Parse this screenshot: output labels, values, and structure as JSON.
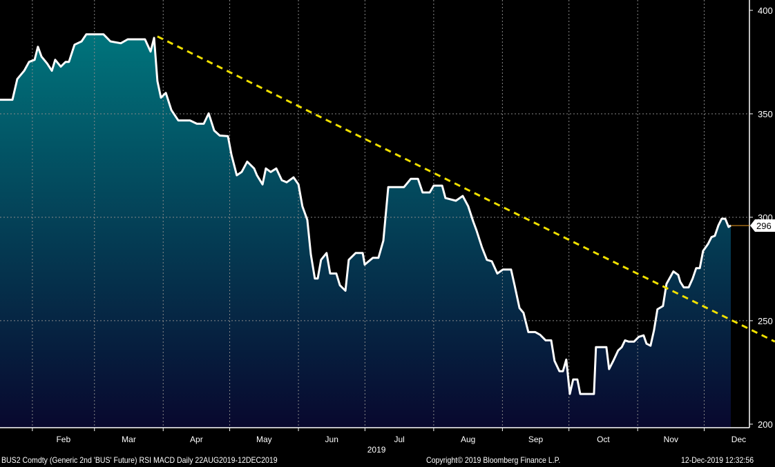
{
  "chart_data": {
    "type": "area",
    "title": "BUS2 Comdty (Generic 2nd 'BUS' Future) RSI MACD",
    "xlabel": "2019",
    "ylabel": "",
    "x_unit": "day of year 2019",
    "ylim": [
      198.3,
      400
    ],
    "xlim": [
      17.4,
      347.0
    ],
    "grid": true,
    "yticks": [
      200,
      250,
      300,
      350,
      400
    ],
    "ytick_labels": [
      "200",
      "250",
      "300",
      "350",
      "400"
    ],
    "month_labels": [
      "Feb",
      "Mar",
      "Apr",
      "May",
      "Jun",
      "Jul",
      "Aug",
      "Sep",
      "Oct",
      "Nov",
      "Dec"
    ],
    "month_starts": [
      32,
      60,
      91,
      121,
      152,
      182,
      213,
      244,
      274,
      305,
      335
    ],
    "year_label": "2019",
    "last_value_label": "296",
    "last_value": 296,
    "colors": {
      "line": "#ffffff",
      "fill_top": "#00747c",
      "fill_bottom": "#08082e",
      "trend": "#f0e000",
      "last_marker": "#f0a020"
    },
    "series": [
      {
        "name": "BUS2 Comdty",
        "points": [
          [
            17.4,
            356.8
          ],
          [
            23.0,
            356.8
          ],
          [
            25.2,
            366.8
          ],
          [
            28.3,
            370.8
          ],
          [
            30.5,
            375.1
          ],
          [
            33.0,
            376.1
          ],
          [
            34.5,
            382.4
          ],
          [
            36.1,
            377.7
          ],
          [
            38.6,
            374.4
          ],
          [
            40.8,
            370.8
          ],
          [
            42.3,
            376.1
          ],
          [
            44.8,
            372.8
          ],
          [
            47.0,
            375.1
          ],
          [
            48.5,
            375.1
          ],
          [
            51.0,
            383.4
          ],
          [
            54.2,
            385.0
          ],
          [
            56.3,
            388.4
          ],
          [
            64.1,
            388.4
          ],
          [
            67.2,
            385.0
          ],
          [
            71.9,
            384.1
          ],
          [
            75.0,
            386.0
          ],
          [
            82.8,
            386.0
          ],
          [
            85.3,
            380.1
          ],
          [
            86.9,
            386.7
          ],
          [
            88.4,
            365.8
          ],
          [
            90.0,
            357.8
          ],
          [
            92.2,
            360.1
          ],
          [
            94.7,
            351.8
          ],
          [
            97.8,
            346.8
          ],
          [
            103.1,
            346.8
          ],
          [
            106.2,
            345.2
          ],
          [
            109.3,
            345.2
          ],
          [
            111.5,
            350.2
          ],
          [
            114.0,
            341.9
          ],
          [
            116.5,
            339.5
          ],
          [
            120.2,
            339.2
          ],
          [
            121.8,
            330.2
          ],
          [
            124.2,
            320.3
          ],
          [
            126.4,
            321.9
          ],
          [
            128.9,
            326.9
          ],
          [
            132.0,
            323.6
          ],
          [
            133.3,
            320.3
          ],
          [
            135.8,
            315.9
          ],
          [
            137.3,
            323.6
          ],
          [
            139.5,
            321.9
          ],
          [
            142.0,
            323.6
          ],
          [
            144.5,
            317.9
          ],
          [
            146.7,
            316.9
          ],
          [
            149.8,
            319.3
          ],
          [
            152.0,
            315.9
          ],
          [
            153.8,
            305.3
          ],
          [
            156.0,
            298.7
          ],
          [
            157.6,
            282.1
          ],
          [
            159.4,
            270.4
          ],
          [
            160.7,
            270.4
          ],
          [
            162.2,
            279.4
          ],
          [
            164.7,
            282.7
          ],
          [
            166.3,
            272.8
          ],
          [
            169.1,
            272.8
          ],
          [
            170.7,
            267.1
          ],
          [
            173.2,
            264.5
          ],
          [
            174.7,
            279.4
          ],
          [
            177.8,
            282.7
          ],
          [
            181.0,
            282.7
          ],
          [
            181.9,
            277.1
          ],
          [
            185.6,
            280.4
          ],
          [
            188.1,
            280.4
          ],
          [
            190.3,
            288.7
          ],
          [
            192.5,
            314.6
          ],
          [
            199.6,
            314.6
          ],
          [
            202.7,
            318.6
          ],
          [
            205.9,
            318.6
          ],
          [
            208.0,
            312.0
          ],
          [
            211.2,
            312.0
          ],
          [
            213.0,
            315.3
          ],
          [
            216.8,
            315.3
          ],
          [
            218.3,
            309.3
          ],
          [
            223.0,
            308.0
          ],
          [
            226.1,
            310.3
          ],
          [
            228.6,
            305.3
          ],
          [
            230.8,
            298.0
          ],
          [
            232.3,
            293.7
          ],
          [
            234.8,
            285.4
          ],
          [
            237.0,
            279.4
          ],
          [
            239.2,
            278.7
          ],
          [
            241.7,
            272.8
          ],
          [
            244.2,
            274.7
          ],
          [
            247.9,
            274.7
          ],
          [
            249.5,
            267.1
          ],
          [
            251.7,
            256.1
          ],
          [
            253.5,
            253.8
          ],
          [
            255.7,
            244.5
          ],
          [
            258.8,
            244.5
          ],
          [
            261.0,
            243.2
          ],
          [
            263.5,
            240.5
          ],
          [
            266.0,
            240.5
          ],
          [
            267.5,
            230.6
          ],
          [
            269.7,
            225.6
          ],
          [
            271.3,
            225.6
          ],
          [
            272.8,
            231.2
          ],
          [
            274.4,
            214.6
          ],
          [
            275.9,
            221.6
          ],
          [
            277.8,
            221.6
          ],
          [
            279.1,
            214.6
          ],
          [
            285.3,
            214.6
          ],
          [
            286.2,
            237.2
          ],
          [
            290.9,
            237.2
          ],
          [
            292.1,
            226.6
          ],
          [
            294.0,
            230.6
          ],
          [
            296.2,
            235.6
          ],
          [
            297.8,
            237.2
          ],
          [
            299.3,
            240.5
          ],
          [
            300.9,
            239.9
          ],
          [
            303.4,
            239.9
          ],
          [
            305.5,
            242.2
          ],
          [
            307.7,
            242.9
          ],
          [
            309.0,
            238.9
          ],
          [
            310.8,
            237.9
          ],
          [
            312.4,
            245.5
          ],
          [
            313.9,
            255.5
          ],
          [
            316.4,
            257.1
          ],
          [
            318.0,
            267.8
          ],
          [
            321.1,
            273.8
          ],
          [
            323.3,
            272.1
          ],
          [
            324.2,
            268.8
          ],
          [
            325.8,
            266.1
          ],
          [
            328.0,
            266.1
          ],
          [
            329.8,
            270.4
          ],
          [
            331.4,
            275.4
          ],
          [
            333.0,
            275.4
          ],
          [
            334.5,
            283.7
          ],
          [
            336.7,
            287.0
          ],
          [
            338.3,
            290.4
          ],
          [
            339.8,
            291.0
          ],
          [
            341.4,
            296.0
          ],
          [
            342.9,
            299.3
          ],
          [
            344.5,
            299.3
          ],
          [
            346.0,
            295.3
          ],
          [
            347.0,
            296.0
          ]
        ]
      }
    ],
    "trendline": {
      "from": [
        88.4,
        387.4
      ],
      "to": [
        366.9,
        239.9
      ],
      "style": "dashed"
    }
  },
  "footer": {
    "security": "BUS2 Comdty (Generic 2nd 'BUS' Future) RSI MACD  Daily 22AUG2019-12DEC2019",
    "copyright": "Copyright© 2019 Bloomberg Finance L.P.",
    "timestamp": "12-Dec-2019 12:32:56"
  }
}
